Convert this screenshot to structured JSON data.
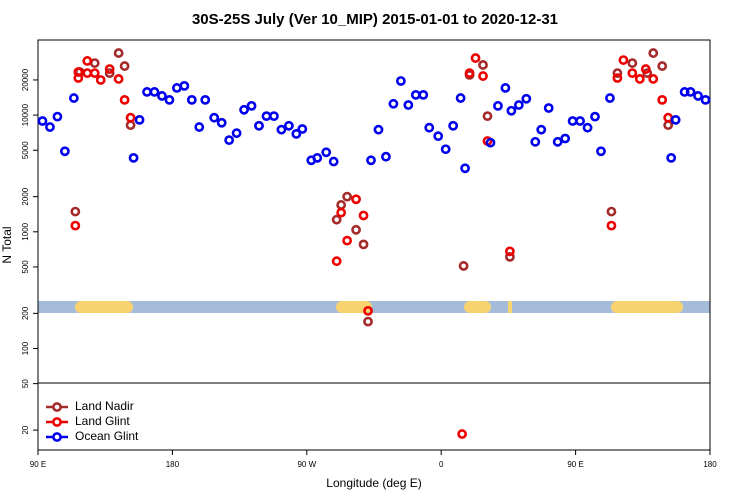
{
  "chart_data": {
    "type": "scatter",
    "title": "30S-25S July (Ver 10_MIP)   2015-01-01 to 2020-12-31",
    "xlabel": "Longitude (deg E)",
    "ylabel": "N Total",
    "log_y": true,
    "legend": "lower-left",
    "xlim": [
      90,
      540
    ],
    "xticks": [
      {
        "value": 90,
        "label": "90 E"
      },
      {
        "value": 180,
        "label": "180"
      },
      {
        "value": 270,
        "label": "90 W"
      },
      {
        "value": 360,
        "label": "0"
      },
      {
        "value": 450,
        "label": "90 E"
      },
      {
        "value": 540,
        "label": "180"
      }
    ],
    "ylim": [
      13.5,
      44000
    ],
    "yticks": [
      20,
      50,
      100,
      200,
      500,
      1000,
      2000,
      5000,
      10000,
      20000
    ],
    "series": [
      {
        "name": "Land Nadir",
        "color": "#a52a2a",
        "x": [
          115,
          118,
          128,
          138,
          144,
          148,
          152,
          290,
          293,
          297,
          303,
          308,
          311,
          375,
          379,
          388,
          391,
          406,
          474,
          478,
          488,
          498,
          502,
          508,
          512
        ],
        "values": [
          1490,
          23400,
          27900,
          22900,
          34000,
          26300,
          8200,
          1270,
          1700,
          2000,
          1040,
          780,
          170,
          510,
          22100,
          26900,
          9800,
          610,
          1490,
          22900,
          27900,
          22900,
          34000,
          26300,
          8200
        ]
      },
      {
        "name": "Land Glint",
        "color": "#ee0000",
        "x": [
          115,
          117,
          117,
          123,
          123,
          128,
          132,
          138,
          144,
          148,
          152,
          290,
          293,
          297,
          303,
          308,
          311,
          374,
          379,
          383,
          388,
          391,
          406,
          474,
          478,
          482,
          488,
          493,
          497,
          502,
          508,
          512
        ],
        "values": [
          1130,
          20800,
          23400,
          29100,
          22900,
          22900,
          20000,
          24800,
          20400,
          13500,
          9500,
          560,
          1460,
          840,
          1900,
          1380,
          210,
          18.5,
          22900,
          30800,
          21600,
          6000,
          680,
          1130,
          20800,
          29600,
          22900,
          20400,
          24800,
          20400,
          13500,
          9500
        ]
      },
      {
        "name": "Ocean Glint",
        "color": "#0000ee",
        "x": [
          93,
          98,
          103,
          108,
          114,
          154,
          158,
          163,
          168,
          173,
          178,
          183,
          188,
          193,
          198,
          202,
          208,
          213,
          218,
          223,
          228,
          233,
          238,
          243,
          248,
          253,
          258,
          263,
          267,
          273,
          277,
          283,
          288,
          313,
          318,
          323,
          328,
          333,
          338,
          343,
          348,
          352,
          358,
          363,
          368,
          373,
          376,
          393,
          398,
          403,
          407,
          412,
          417,
          423,
          427,
          432,
          438,
          443,
          448,
          453,
          458,
          463,
          467,
          473,
          514,
          517,
          523,
          527,
          532,
          537
        ],
        "values": [
          8900,
          7900,
          9700,
          4900,
          14000,
          4300,
          9100,
          15800,
          15800,
          14600,
          13500,
          17100,
          17800,
          13500,
          7900,
          13500,
          9500,
          8600,
          6100,
          7000,
          11100,
          12000,
          8100,
          9800,
          9800,
          7500,
          8100,
          6900,
          7600,
          4100,
          4300,
          4800,
          4000,
          4100,
          7500,
          4400,
          12500,
          19600,
          12200,
          14900,
          14900,
          7800,
          6600,
          5100,
          8100,
          14000,
          3500,
          5800,
          12000,
          17100,
          10900,
          12200,
          13800,
          5900,
          7500,
          11500,
          5900,
          6300,
          8900,
          8900,
          7800,
          9700,
          4900,
          14000,
          4300,
          9100,
          15800,
          15800,
          14600,
          13500
        ]
      }
    ]
  }
}
